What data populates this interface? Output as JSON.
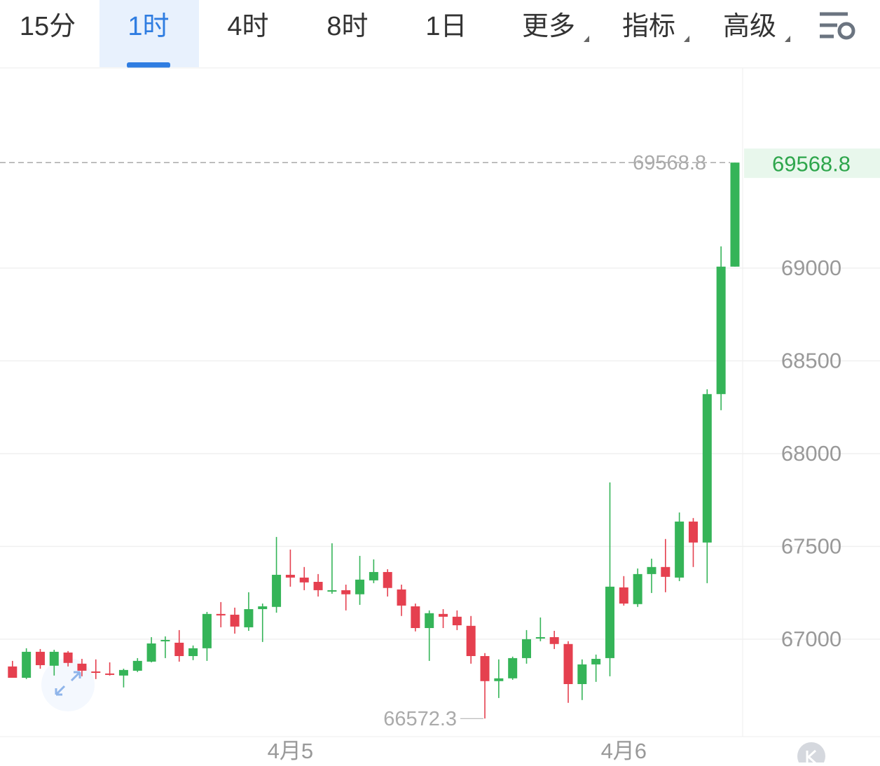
{
  "toolbar": {
    "tabs": [
      "15分",
      "1时",
      "4时",
      "8时",
      "1日",
      "更多",
      "指标",
      "高级"
    ],
    "selected": 1
  },
  "chart_data": {
    "type": "candlestick",
    "categories": [
      null,
      null,
      null,
      null,
      null,
      null,
      null,
      null,
      null,
      null,
      null,
      null,
      null,
      null,
      null,
      null,
      null,
      null,
      null,
      null,
      "4月5",
      null,
      null,
      null,
      null,
      null,
      null,
      null,
      null,
      null,
      null,
      null,
      null,
      null,
      null,
      null,
      null,
      null,
      null,
      null,
      null,
      null,
      null,
      null,
      "4月6",
      null,
      null,
      null,
      null,
      null,
      null,
      null,
      null
    ],
    "open": [
      66853,
      66792,
      66932,
      66857,
      66928,
      66868,
      66826,
      66815,
      66804,
      66830,
      66879,
      66989,
      66981,
      66909,
      66951,
      67136,
      67132,
      67064,
      67162,
      67174,
      67347,
      67332,
      67309,
      67257,
      67264,
      67242,
      67317,
      67362,
      67268,
      67177,
      67060,
      67136,
      67121,
      67072,
      66909,
      66774,
      66789,
      66898,
      67004,
      67011,
      66974,
      66758,
      66864,
      66898,
      67279,
      67189,
      67351,
      67389,
      67332,
      67634,
      67521,
      68321,
      69008
    ],
    "high": [
      66883,
      66951,
      66947,
      66943,
      66936,
      66894,
      66891,
      66875,
      66841,
      66898,
      67011,
      67015,
      67049,
      66966,
      67147,
      67200,
      67170,
      67253,
      67192,
      67551,
      67483,
      67389,
      67351,
      67517,
      67294,
      67449,
      67430,
      67377,
      67294,
      67192,
      67155,
      67162,
      67155,
      67125,
      66925,
      66891,
      66906,
      67049,
      67117,
      67045,
      66989,
      66891,
      66917,
      67845,
      67340,
      67381,
      67434,
      67540,
      67683,
      67653,
      68347,
      69117,
      69568.8
    ],
    "low": [
      66792,
      66785,
      66841,
      66804,
      66853,
      66800,
      66785,
      66804,
      66740,
      66823,
      66875,
      66898,
      66879,
      66887,
      66883,
      67064,
      67030,
      67045,
      66985,
      67143,
      67283,
      67264,
      67230,
      67245,
      67155,
      67185,
      67302,
      67230,
      67125,
      67042,
      66883,
      67060,
      67049,
      66868,
      66572.3,
      66683,
      66781,
      66868,
      66989,
      66947,
      66657,
      66672,
      66770,
      66800,
      67181,
      67174,
      67249,
      67253,
      67313,
      67389,
      67302,
      68234,
      69008
    ],
    "close": [
      66792,
      66932,
      66860,
      66932,
      66872,
      66830,
      66819,
      66808,
      66834,
      66883,
      66977,
      66996,
      66909,
      66951,
      67136,
      67128,
      67068,
      67162,
      67177,
      67347,
      67332,
      67306,
      67264,
      67264,
      67242,
      67321,
      67362,
      67276,
      67181,
      67060,
      67140,
      67121,
      67075,
      66909,
      66774,
      66789,
      66898,
      67000,
      67011,
      66974,
      66758,
      66864,
      66894,
      67283,
      67192,
      67351,
      67389,
      67336,
      67634,
      67521,
      68321,
      69008,
      69568.8
    ],
    "up_color": "#35b458",
    "down_color": "#e5404f",
    "ylim": [
      66475,
      70079
    ],
    "yticks": [
      67000,
      67500,
      68000,
      68500,
      69000
    ],
    "grid": true
  }
}
